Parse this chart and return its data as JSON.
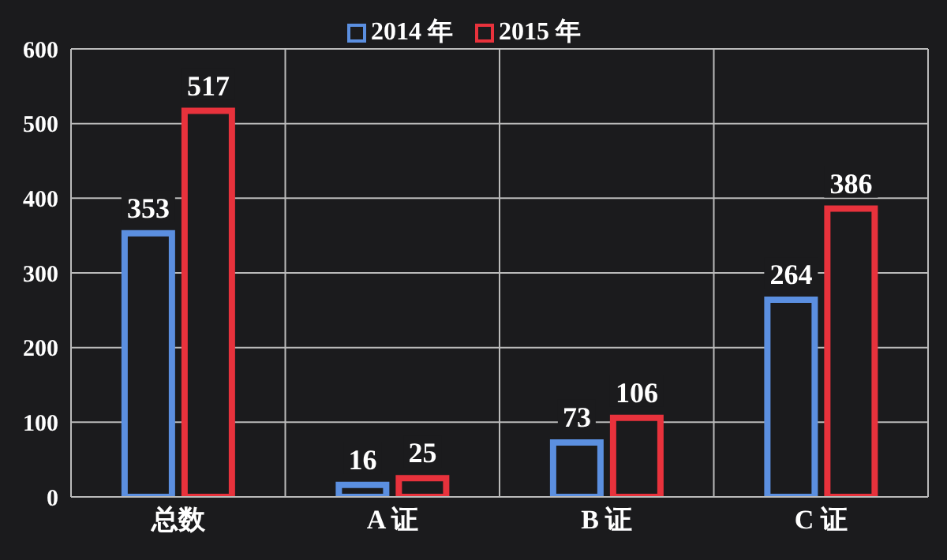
{
  "chart_data": {
    "type": "bar",
    "categories": [
      "总数",
      "A 证",
      "B 证",
      "C 证"
    ],
    "series": [
      {
        "name": "2014 年",
        "color": "#5b8fe0",
        "values": [
          353,
          16,
          73,
          264
        ]
      },
      {
        "name": "2015 年",
        "color": "#e8323c",
        "values": [
          517,
          25,
          106,
          386
        ]
      }
    ],
    "ylim": [
      0,
      600
    ],
    "yticks": [
      0,
      100,
      200,
      300,
      400,
      500,
      600
    ],
    "grid": true,
    "legend": "top",
    "data_labels": true
  }
}
